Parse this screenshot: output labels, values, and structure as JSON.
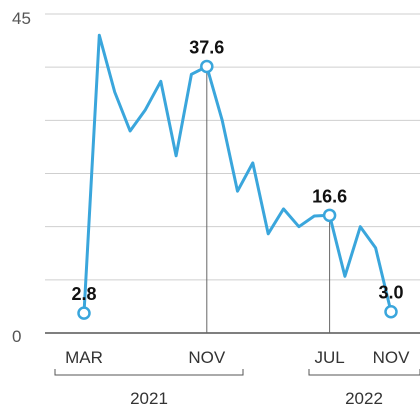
{
  "chart_data": {
    "type": "line",
    "ylim": [
      0,
      45
    ],
    "yticks": [
      "0",
      "45"
    ],
    "grid": true,
    "series": [
      {
        "x": [
          "2021-03",
          "2021-04",
          "2021-05",
          "2021-06",
          "2021-07",
          "2021-08",
          "2021-09",
          "2021-10",
          "2021-11",
          "2021-12",
          "2022-01",
          "2022-02",
          "2022-03",
          "2022-04",
          "2022-05",
          "2022-06",
          "2022-07",
          "2022-08",
          "2022-09",
          "2022-10",
          "2022-11"
        ],
        "values": [
          2.8,
          42.0,
          34.0,
          28.5,
          31.5,
          35.5,
          25.0,
          36.5,
          37.6,
          30.0,
          20.0,
          24.0,
          14.0,
          17.5,
          15.0,
          16.5,
          16.6,
          8.0,
          15.0,
          12.0,
          3.0
        ],
        "color": "#3aa6dc"
      }
    ],
    "annotations": [
      {
        "x": "2021-03",
        "value": 2.8,
        "label": "2.8"
      },
      {
        "x": "2021-11",
        "value": 37.6,
        "label": "37.6"
      },
      {
        "x": "2022-07",
        "value": 16.6,
        "label": "16.6"
      },
      {
        "x": "2022-11",
        "value": 3.0,
        "label": "3.0"
      }
    ],
    "month_labels": [
      {
        "x": "2021-03",
        "label": "MAR"
      },
      {
        "x": "2021-11",
        "label": "NOV"
      },
      {
        "x": "2022-07",
        "label": "JUL"
      },
      {
        "x": "2022-11",
        "label": "NOV"
      }
    ],
    "year_labels": [
      {
        "label": "2021"
      },
      {
        "label": "2022"
      }
    ]
  },
  "colors": {
    "line": "#3aa6dc",
    "grid": "#cfcfcf",
    "axis": "#555555",
    "marker_fill": "#ffffff",
    "annotation_line": "#666666"
  }
}
